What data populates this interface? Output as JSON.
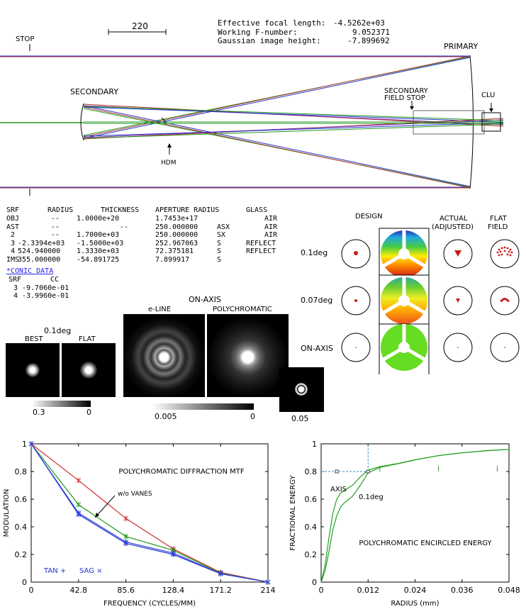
{
  "header": {
    "efl_label": "Effective focal length:",
    "efl_value": "-4.5262e+03",
    "wf_label": "Working F-number:",
    "wf_value": "9.052371",
    "gih_label": "Gaussian image height:",
    "gih_value": "-7.899692"
  },
  "layout_labels": {
    "scale": "220",
    "stop": "STOP",
    "primary": "PRIMARY",
    "secondary": "SECONDARY",
    "secondary_field_stop_1": "SECONDARY",
    "secondary_field_stop_2": "FIELD STOP",
    "clu": "CLU",
    "hdm": "HDM"
  },
  "lens_table": {
    "headers": [
      "SRF",
      "RADIUS",
      "THICKNESS",
      "APERTURE RADIUS",
      "GLASS"
    ],
    "rows": [
      {
        "srf": "OBJ",
        "radius": "--",
        "thickness": "1.0000e+20",
        "aperture": "1.7453e+17",
        "flag": "",
        "glass": "AIR"
      },
      {
        "srf": "AST",
        "radius": "--",
        "thickness": "--",
        "aperture": "250.000000",
        "flag": "ASX",
        "glass": "AIR"
      },
      {
        "srf": "2",
        "radius": "--",
        "thickness": "1.7000e+03",
        "aperture": "250.000000",
        "flag": "SX",
        "glass": "AIR"
      },
      {
        "srf": "3",
        "radius": "-2.3394e+03",
        "thickness": "-1.5000e+03",
        "aperture": "252.967063",
        "flag": "S",
        "glass": "REFLECT"
      },
      {
        "srf": "4",
        "radius": "524.940000",
        "thickness": "1.3330e+03",
        "aperture": "72.375181",
        "flag": "S",
        "glass": "REFLECT"
      },
      {
        "srf": "IMS",
        "radius": "355.000000",
        "thickness": "-54.891725",
        "aperture": "7.899917",
        "flag": "S",
        "glass": ""
      }
    ],
    "conic_link": "*CONIC DATA",
    "conic_headers": [
      "SRF",
      "CC"
    ],
    "conic_rows": [
      {
        "srf": "3",
        "cc": "-9.7060e-01"
      },
      {
        "srf": "4",
        "cc": "-3.9960e-01"
      }
    ]
  },
  "spot_panel": {
    "col_design": "DESIGN",
    "col_actual_1": "ACTUAL",
    "col_actual_2": "(ADJUSTED)",
    "col_flat_1": "FLAT",
    "col_flat_2": "FIELD",
    "rows": [
      "0.1deg",
      "0.07deg",
      "ON-AXIS"
    ]
  },
  "psf_panel": {
    "field_label": "0.1deg",
    "best": "BEST",
    "flat": "FLAT",
    "scale_left_max": "0.3",
    "scale_left_min": "0",
    "on_axis": "ON-AXIS",
    "eline": "e-LINE",
    "poly": "POLYCHROMATIC",
    "scale_mid_left": "0.005",
    "scale_mid_right": "0",
    "scale_small": "0.05"
  },
  "chart_data": [
    {
      "type": "line",
      "title": "POLYCHROMATIC DIFFRACTION MTF",
      "xlabel": "FREQUENCY (CYCLES/MM)",
      "ylabel": "MODULATION",
      "xlim": [
        0,
        214
      ],
      "ylim": [
        0,
        1
      ],
      "xticks": [
        "0",
        "42.8",
        "85.6",
        "128.4",
        "171.2",
        "214"
      ],
      "yticks": [
        "0",
        "0.2",
        "0.4",
        "0.6",
        "0.8",
        "1"
      ],
      "annotation": "w/o VANES",
      "legend": {
        "tan": "TAN +",
        "sag": "SAG ×"
      },
      "series": [
        {
          "color": "#d42a2a",
          "x": [
            0,
            42.8,
            85.6,
            128.4,
            171.2,
            214
          ],
          "y": [
            1,
            0.735,
            0.46,
            0.24,
            0.07,
            0
          ]
        },
        {
          "color": "#1d9a1d",
          "x": [
            0,
            42.8,
            85.6,
            128.4,
            171.2,
            214
          ],
          "y": [
            1,
            0.56,
            0.33,
            0.23,
            0.065,
            0
          ]
        },
        {
          "color": "#2233cc",
          "x": [
            0,
            42.8,
            85.6,
            128.4,
            171.2,
            214
          ],
          "y": [
            1,
            0.49,
            0.28,
            0.2,
            0.06,
            0
          ]
        },
        {
          "color": "#3344dd",
          "x": [
            0,
            42.8,
            85.6,
            128.4,
            171.2,
            214
          ],
          "y": [
            1,
            0.5,
            0.29,
            0.21,
            0.062,
            0
          ]
        }
      ]
    },
    {
      "type": "line",
      "title": "POLYCHROMATIC ENCIRCLED ENERGY",
      "xlabel": "RADIUS (mm)",
      "ylabel": "FRACTIONAL ENERGY",
      "xlim": [
        0,
        0.048
      ],
      "ylim": [
        0,
        1
      ],
      "xticks": [
        "0",
        "0.012",
        "0.024",
        "0.036",
        "0.048"
      ],
      "yticks": [
        "0",
        "0.2",
        "0.4",
        "0.6",
        "0.8",
        "1"
      ],
      "annotations": [
        "AXIS",
        "0.1deg"
      ],
      "series": [
        {
          "color": "#22a022",
          "x": [
            0,
            0.001,
            0.002,
            0.003,
            0.004,
            0.005,
            0.006,
            0.008,
            0.01,
            0.012,
            0.015,
            0.02,
            0.024,
            0.03,
            0.036,
            0.042,
            0.048
          ],
          "y": [
            0,
            0.12,
            0.32,
            0.5,
            0.6,
            0.645,
            0.665,
            0.7,
            0.76,
            0.81,
            0.835,
            0.86,
            0.885,
            0.915,
            0.935,
            0.95,
            0.96
          ]
        },
        {
          "color": "#22a022",
          "x": [
            0,
            0.001,
            0.002,
            0.003,
            0.004,
            0.005,
            0.006,
            0.008,
            0.01,
            0.012,
            0.015,
            0.02,
            0.024,
            0.03,
            0.036,
            0.042,
            0.048
          ],
          "y": [
            0,
            0.08,
            0.22,
            0.38,
            0.48,
            0.545,
            0.575,
            0.62,
            0.7,
            0.79,
            0.83,
            0.858,
            0.884,
            0.915,
            0.935,
            0.95,
            0.96
          ]
        }
      ]
    }
  ]
}
